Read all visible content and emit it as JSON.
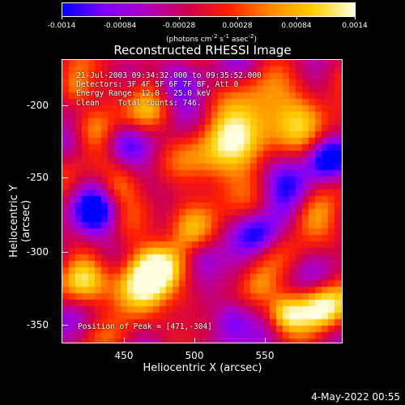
{
  "colorbar": {
    "colors": [
      "#0000ff",
      "#7f00ff",
      "#b000c0",
      "#d0004c",
      "#ff2000",
      "#ff8a00",
      "#ffd000",
      "#ffffe0"
    ],
    "tick_labels": [
      "-0.0014",
      "-0.00084",
      "-0.00028",
      "0.00028",
      "0.00084",
      "0.0014"
    ],
    "unit": {
      "prefix": "(photons cm",
      "e1": "-2",
      "mid1": " s",
      "e2": "-1",
      "mid2": " asec",
      "e3": "-2",
      "suffix": ")"
    }
  },
  "title": "Reconstructed RHESSI Image",
  "overlay": {
    "time_range": "21-Jul-2003 09:34:32.000 to 09:35:52.000",
    "detectors": "Detectors: 3F 4F 5F 6F 7F 8F, Att 0",
    "energy_range": "Energy Range: 12.0 - 25.0 keV",
    "algorithm": "Clean    Total counts: 746."
  },
  "peak_label": "Position of Peak = [471,-304]",
  "axes": {
    "xlabel": "Heliocentric X (arcsec)",
    "ylabel": "Heliocentric Y (arcsec)",
    "xticks": [
      "450",
      "500",
      "550"
    ],
    "yticks": [
      "-200",
      "-250",
      "-300",
      "-350"
    ]
  },
  "timestamp": "4-May-2022 00:55"
}
